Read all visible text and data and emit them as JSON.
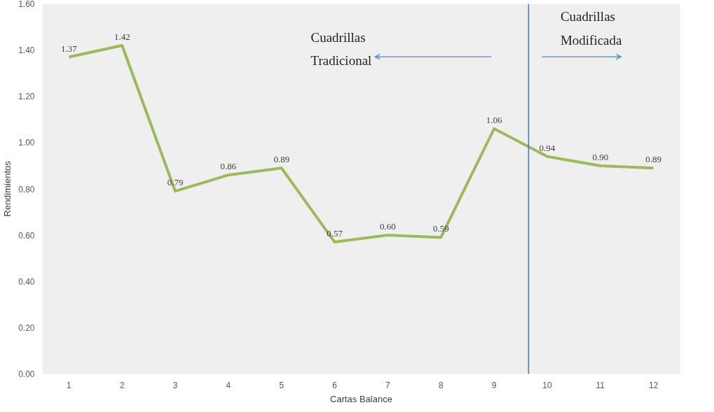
{
  "chart_data": {
    "type": "line",
    "xlabel": "Cartas Balance",
    "ylabel": "Rendimientos",
    "x": [
      1,
      2,
      3,
      4,
      5,
      6,
      7,
      8,
      9,
      10,
      11,
      12
    ],
    "xlim": [
      0.5,
      12.5
    ],
    "xticks": [
      1,
      2,
      3,
      4,
      5,
      6,
      7,
      8,
      9,
      10,
      11,
      12
    ],
    "ylim": [
      0,
      1.6
    ],
    "yticks": [
      {
        "value": 0,
        "label": "0.00"
      },
      {
        "value": 0.2,
        "label": "0.20"
      },
      {
        "value": 0.4,
        "label": "0.40"
      },
      {
        "value": 0.6,
        "label": "0.60"
      },
      {
        "value": 0.8,
        "label": "0.80"
      },
      {
        "value": 1.0,
        "label": "1.00"
      },
      {
        "value": 1.2,
        "label": "1.20"
      },
      {
        "value": 1.4,
        "label": "1.40"
      },
      {
        "value": 1.6,
        "label": "1.60"
      }
    ],
    "series": [
      {
        "color": "#9bbb59",
        "values": [
          1.37,
          1.42,
          0.79,
          0.86,
          0.89,
          0.57,
          0.6,
          0.59,
          1.06,
          0.94,
          0.9,
          0.89
        ],
        "value_labels": [
          "1.37",
          "1.42",
          "0.79",
          "0.86",
          "0.89",
          "0.57",
          "0.60",
          "0.59",
          "1.06",
          "0.94",
          "0.90",
          "0.89"
        ]
      }
    ],
    "ref_lines": [
      {
        "axis": "x",
        "value": 9.65,
        "color": "#4472c4"
      }
    ],
    "annotations": [
      "Cuadrillas Tradicional",
      "Cuadrillas Modificada"
    ],
    "grid": false,
    "marker": "none",
    "line_style": "solid"
  }
}
